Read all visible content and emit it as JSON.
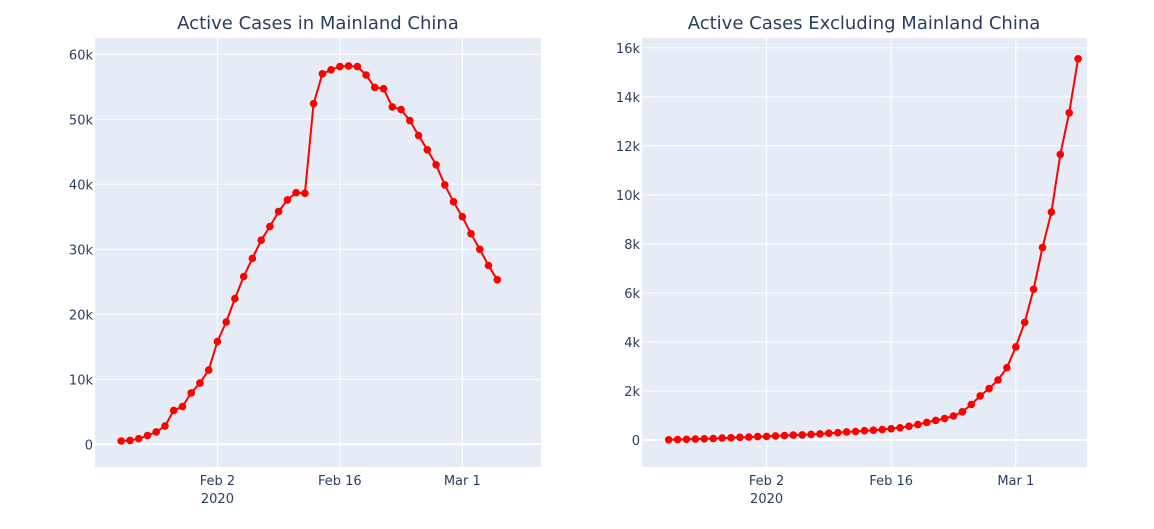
{
  "chart_data": [
    {
      "type": "line",
      "title": "Active Cases in Mainland China",
      "xlabel": "",
      "ylabel": "",
      "x_start": "2020-01-22",
      "x_step_days": 1,
      "xlim": [
        "2020-01-19",
        "2020-03-10"
      ],
      "ylim": [
        -3500,
        62500
      ],
      "x_ticks": [
        {
          "date": "2020-02-02",
          "label": "Feb 2",
          "sublabel": "2020"
        },
        {
          "date": "2020-02-16",
          "label": "Feb 16",
          "sublabel": ""
        },
        {
          "date": "2020-03-01",
          "label": "Mar 1",
          "sublabel": ""
        }
      ],
      "y_ticks": [
        {
          "value": 0,
          "label": "0"
        },
        {
          "value": 10000,
          "label": "10k"
        },
        {
          "value": 20000,
          "label": "20k"
        },
        {
          "value": 30000,
          "label": "30k"
        },
        {
          "value": 40000,
          "label": "40k"
        },
        {
          "value": 50000,
          "label": "50k"
        },
        {
          "value": 60000,
          "label": "60k"
        }
      ],
      "grid": true,
      "line_color": "#ff0000",
      "marker_color": "#ff0000",
      "plot_background": "#e5ecf6",
      "values": [
        503,
        595,
        858,
        1325,
        1903,
        2800,
        5200,
        5800,
        7900,
        9400,
        11400,
        15800,
        18800,
        22400,
        25800,
        28600,
        31400,
        33500,
        35800,
        37600,
        38700,
        38600,
        52400,
        57000,
        57600,
        58100,
        58200,
        58100,
        56800,
        54900,
        54700,
        51900,
        51500,
        49800,
        47500,
        45300,
        43000,
        39900,
        37300,
        35000,
        32400,
        30000,
        27500,
        25300
      ]
    },
    {
      "type": "line",
      "title": "Active Cases Excluding Mainland China",
      "xlabel": "",
      "ylabel": "",
      "x_start": "2020-01-22",
      "x_step_days": 1,
      "xlim": [
        "2020-01-19",
        "2020-03-09"
      ],
      "ylim": [
        -1100,
        16400
      ],
      "x_ticks": [
        {
          "date": "2020-02-02",
          "label": "Feb 2",
          "sublabel": "2020"
        },
        {
          "date": "2020-02-16",
          "label": "Feb 16",
          "sublabel": ""
        },
        {
          "date": "2020-03-01",
          "label": "Mar 1",
          "sublabel": ""
        }
      ],
      "y_ticks": [
        {
          "value": 0,
          "label": "0"
        },
        {
          "value": 2000,
          "label": "2k"
        },
        {
          "value": 4000,
          "label": "4k"
        },
        {
          "value": 6000,
          "label": "6k"
        },
        {
          "value": 8000,
          "label": "8k"
        },
        {
          "value": 10000,
          "label": "10k"
        },
        {
          "value": 12000,
          "label": "12k"
        },
        {
          "value": 14000,
          "label": "14k"
        },
        {
          "value": 16000,
          "label": "16k"
        }
      ],
      "grid": true,
      "line_color": "#ff0000",
      "marker_color": "#ff0000",
      "plot_background": "#e5ecf6",
      "values": [
        10,
        20,
        30,
        40,
        50,
        60,
        80,
        90,
        110,
        120,
        140,
        150,
        170,
        180,
        200,
        210,
        230,
        250,
        280,
        300,
        330,
        350,
        380,
        400,
        430,
        460,
        500,
        560,
        630,
        720,
        800,
        880,
        980,
        1150,
        1450,
        1800,
        2100,
        2450,
        2950,
        3800,
        4800,
        6150,
        7850,
        9300,
        11650,
        13350,
        15550
      ]
    }
  ]
}
